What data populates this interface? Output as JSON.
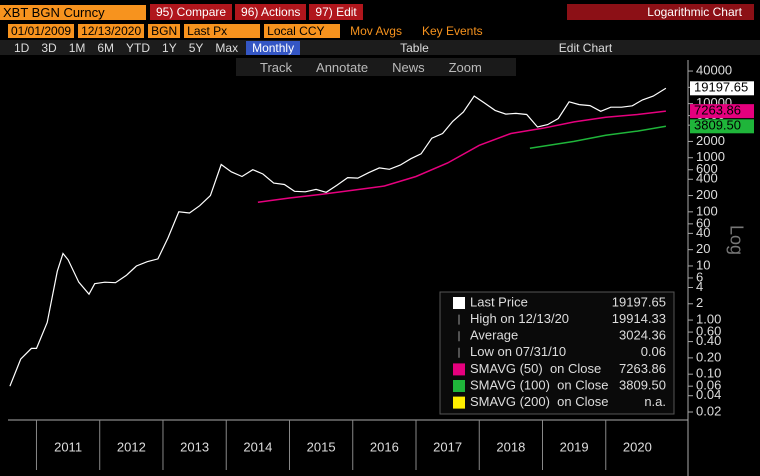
{
  "toolbar": {
    "security": "XBT BGN Curncy",
    "menus": [
      "95) Compare",
      "96) Actions",
      "97) Edit"
    ],
    "chart_kind": "Logarithmic Chart",
    "start_date": "01/01/2009",
    "end_date": "12/13/2020",
    "source": "BGN",
    "field": "Last Px",
    "currency": "Local CCY",
    "mov_avgs": "Mov Avgs",
    "key_events": "Key Events",
    "periods": [
      "1D",
      "3D",
      "1M",
      "6M",
      "YTD",
      "1Y",
      "5Y",
      "Max"
    ],
    "frequency": "Monthly",
    "table": "Table",
    "edit_chart": "Edit Chart",
    "tools": [
      "Track",
      "Annotate",
      "News",
      "Zoom"
    ]
  },
  "chart_data": {
    "type": "line",
    "y_axis_label": "Log",
    "log_scale": true,
    "xlim": [
      2010.55,
      2021.3
    ],
    "xticks": [
      {
        "value": 2011.5,
        "label": "2011"
      },
      {
        "value": 2012.5,
        "label": "2012"
      },
      {
        "value": 2013.5,
        "label": "2013"
      },
      {
        "value": 2014.5,
        "label": "2014"
      },
      {
        "value": 2015.5,
        "label": "2015"
      },
      {
        "value": 2016.5,
        "label": "2016"
      },
      {
        "value": 2017.5,
        "label": "2017"
      },
      {
        "value": 2018.5,
        "label": "2018"
      },
      {
        "value": 2019.5,
        "label": "2019"
      },
      {
        "value": 2020.5,
        "label": "2020"
      }
    ],
    "ylim": [
      0.0115,
      64000
    ],
    "yticks": [
      0.02,
      0.04,
      0.06,
      {
        "value": 0.1,
        "label": "0.10"
      },
      {
        "value": 0.2,
        "label": "0.20"
      },
      {
        "value": 0.4,
        "label": "0.40"
      },
      {
        "value": 0.6,
        "label": "0.60"
      },
      {
        "value": 1,
        "label": "1.00"
      },
      2,
      4,
      6,
      10,
      20,
      40,
      60,
      100,
      200,
      400,
      600,
      1000,
      2000,
      4000,
      6000,
      10000,
      20000,
      40000
    ],
    "series": [
      {
        "name": "Last Price",
        "color": "#ffffff",
        "x": [
          2010.58,
          2010.75,
          2010.92,
          2011.0,
          2011.17,
          2011.33,
          2011.42,
          2011.5,
          2011.67,
          2011.83,
          2011.92,
          2012.08,
          2012.25,
          2012.42,
          2012.58,
          2012.75,
          2012.92,
          2013.08,
          2013.25,
          2013.42,
          2013.58,
          2013.75,
          2013.92,
          2014.08,
          2014.25,
          2014.42,
          2014.58,
          2014.75,
          2014.92,
          2015.08,
          2015.25,
          2015.42,
          2015.58,
          2015.75,
          2015.92,
          2016.08,
          2016.25,
          2016.42,
          2016.58,
          2016.75,
          2016.92,
          2017.08,
          2017.25,
          2017.42,
          2017.58,
          2017.75,
          2017.92,
          2018.08,
          2018.25,
          2018.42,
          2018.58,
          2018.75,
          2018.92,
          2019.08,
          2019.25,
          2019.42,
          2019.58,
          2019.75,
          2019.92,
          2020.08,
          2020.25,
          2020.42,
          2020.58,
          2020.75,
          2020.95
        ],
        "values": [
          0.06,
          0.19,
          0.3,
          0.3,
          0.9,
          8,
          17,
          13,
          5,
          3,
          4.7,
          5,
          4.9,
          6.7,
          10,
          12,
          13.5,
          33,
          100,
          95,
          130,
          200,
          750,
          550,
          450,
          600,
          500,
          340,
          320,
          240,
          235,
          260,
          230,
          310,
          430,
          420,
          530,
          650,
          610,
          730,
          960,
          1180,
          2300,
          2800,
          4700,
          7000,
          13800,
          10300,
          7500,
          6400,
          6600,
          6300,
          3700,
          4100,
          5300,
          10800,
          9600,
          9200,
          7200,
          8600,
          8600,
          9100,
          11700,
          13800,
          19197.65
        ]
      },
      {
        "name": "SMAVG (50)  on Close",
        "color": "#e6007e",
        "x": [
          2014.5,
          2015.0,
          2015.5,
          2016.0,
          2016.5,
          2017.0,
          2017.5,
          2018.0,
          2018.5,
          2019.0,
          2019.5,
          2020.0,
          2020.5,
          2020.95
        ],
        "values": [
          150,
          180,
          210,
          250,
          300,
          450,
          800,
          1700,
          2800,
          3500,
          4600,
          5600,
          6300,
          7263.86
        ]
      },
      {
        "name": "SMAVG (100)  on Close",
        "color": "#1fb53a",
        "x": [
          2018.8,
          2019.5,
          2020.0,
          2020.5,
          2020.95
        ],
        "values": [
          1500,
          2000,
          2600,
          3100,
          3809.5
        ],
        "value_labels": [
          null,
          null,
          null,
          null,
          "3809.50"
        ]
      },
      {
        "name": "SMAVG (200)  on Close",
        "color": "#ffee00",
        "x": [],
        "values": [],
        "status": "n.a."
      }
    ],
    "stats": [
      {
        "label": "High on 12/13/20",
        "value": 19914.33
      },
      {
        "label": "Average",
        "value": 3024.36
      },
      {
        "label": "Low on 07/31/10",
        "value": 0.06
      }
    ]
  }
}
